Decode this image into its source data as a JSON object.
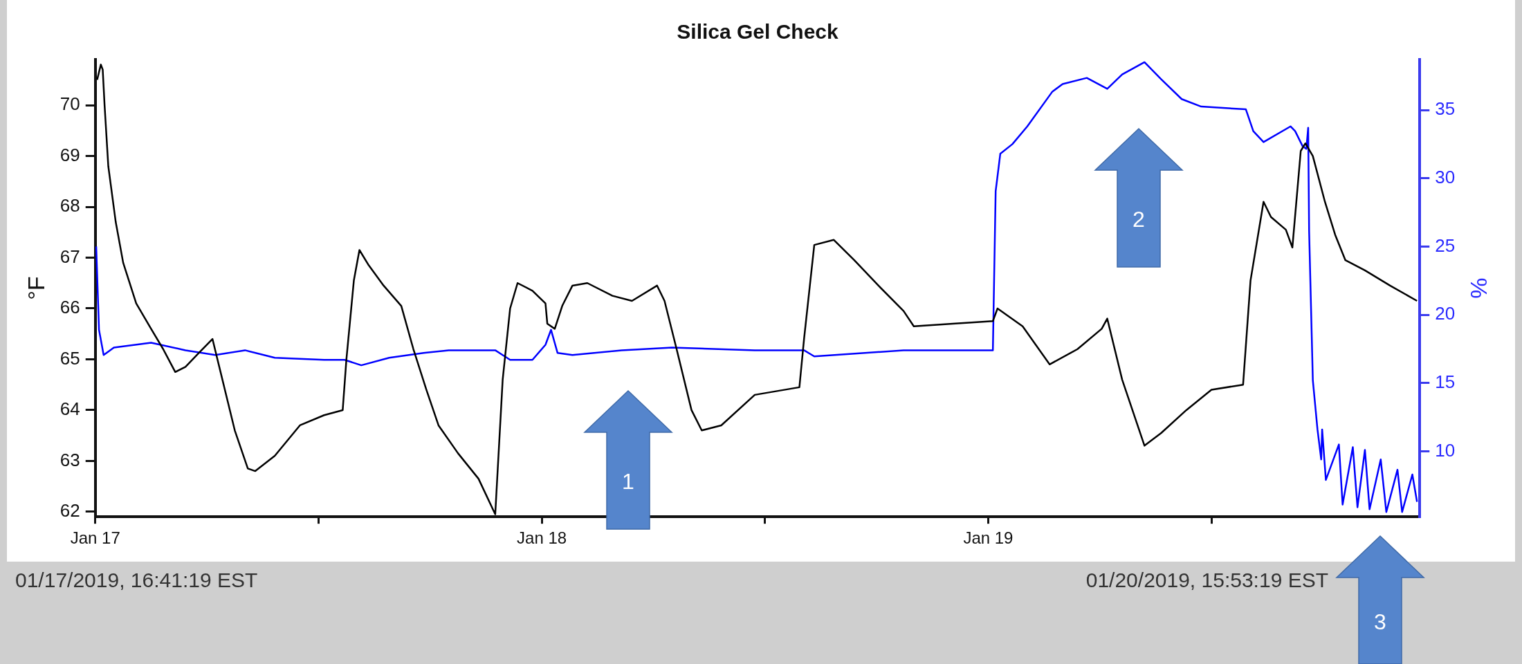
{
  "chart_data": {
    "type": "line",
    "title": "Silica Gel Check",
    "ylabel": "°F",
    "y2label": "%",
    "xlim": [
      "2019-01-17T16:41",
      "2019-01-20T15:53"
    ],
    "xticks": [
      {
        "value": "2019-01-17T16:41",
        "label": "Jan 17"
      },
      {
        "value": "2019-01-18T04:41",
        "label": null
      },
      {
        "value": "2019-01-18T16:41",
        "label": "Jan 18"
      },
      {
        "value": "2019-01-19T04:41",
        "label": null
      },
      {
        "value": "2019-01-19T16:41",
        "label": "Jan 19"
      },
      {
        "value": "2019-01-20T04:41",
        "label": null
      }
    ],
    "ylim": [
      61.9,
      70.9
    ],
    "yticks": [
      62,
      63,
      64,
      65,
      66,
      67,
      68,
      69,
      70
    ],
    "y2lim": [
      5.2,
      38.7
    ],
    "y2ticks": [
      10,
      15,
      20,
      25,
      30,
      35
    ],
    "grid": false,
    "legend": false,
    "marker": "none",
    "line_style": "solid",
    "annotations": [
      "01/17/2019, 16:41:19 EST",
      "01/20/2019, 15:53:19 EST",
      "1",
      "2",
      "3"
    ],
    "series": [
      {
        "color": "#000000",
        "x": [
          "2019-01-17T16:47",
          "2019-01-17T16:59",
          "2019-01-17T17:05",
          "2019-01-17T17:11",
          "2019-01-17T17:23",
          "2019-01-17T17:47",
          "2019-01-17T18:11",
          "2019-01-17T18:53",
          "2019-01-17T19:41",
          "2019-01-17T20:20",
          "2019-01-17T20:59",
          "2019-01-17T21:32",
          "2019-01-17T22:11",
          "2019-01-17T22:59",
          "2019-01-17T23:23",
          "2019-01-18T00:11",
          "2019-01-18T00:53",
          "2019-01-18T01:17",
          "2019-01-18T02:20",
          "2019-01-18T03:41",
          "2019-01-18T04:59",
          "2019-01-18T05:59",
          "2019-01-18T06:11",
          "2019-01-18T06:35",
          "2019-01-18T06:53",
          "2019-01-18T07:23",
          "2019-01-18T08:11",
          "2019-01-18T09:08",
          "2019-01-18T09:47",
          "2019-01-18T10:29",
          "2019-01-18T11:08",
          "2019-01-18T12:11",
          "2019-01-18T13:17",
          "2019-01-18T14:11",
          "2019-01-18T14:35",
          "2019-01-18T14:59",
          "2019-01-18T15:23",
          "2019-01-18T16:11",
          "2019-01-18T16:53",
          "2019-01-18T16:59",
          "2019-01-18T17:23",
          "2019-01-18T17:47",
          "2019-01-18T18:20",
          "2019-01-18T19:08",
          "2019-01-18T20:29",
          "2019-01-18T21:32",
          "2019-01-18T22:53",
          "2019-01-18T23:17",
          "2019-01-18T23:56",
          "2019-01-19T00:44",
          "2019-01-19T01:17",
          "2019-01-19T02:20",
          "2019-01-19T04:08",
          "2019-01-19T06:32",
          "2019-01-19T06:47",
          "2019-01-19T07:20",
          "2019-01-19T08:23",
          "2019-01-19T09:29",
          "2019-01-19T10:47",
          "2019-01-19T12:08",
          "2019-01-19T12:41",
          "2019-01-19T14:47",
          "2019-01-19T16:56",
          "2019-01-19T17:11",
          "2019-01-19T18:32",
          "2019-01-19T19:59",
          "2019-01-19T21:29",
          "2019-01-19T22:47",
          "2019-01-19T23:05",
          "2019-01-19T23:53",
          "2019-01-20T01:05",
          "2019-01-20T01:59",
          "2019-01-20T03:20",
          "2019-01-20T04:41",
          "2019-01-20T06:23",
          "2019-01-20T06:47",
          "2019-01-20T07:29",
          "2019-01-20T07:53",
          "2019-01-20T08:41",
          "2019-01-20T09:02",
          "2019-01-20T09:29",
          "2019-01-20T09:44",
          "2019-01-20T10:08",
          "2019-01-20T10:47",
          "2019-01-20T11:20",
          "2019-01-20T11:53",
          "2019-01-20T12:56",
          "2019-01-20T14:17",
          "2019-01-20T15:44"
        ],
        "values": [
          70.5,
          70.8,
          70.7,
          70.0,
          68.8,
          67.7,
          66.9,
          66.1,
          65.6,
          65.2,
          64.75,
          64.85,
          65.1,
          65.4,
          64.8,
          63.6,
          62.85,
          62.8,
          63.1,
          63.7,
          63.9,
          64.0,
          65.0,
          66.55,
          67.15,
          66.85,
          66.45,
          66.05,
          65.2,
          64.4,
          63.7,
          63.15,
          62.65,
          61.95,
          64.6,
          66.0,
          66.5,
          66.35,
          66.1,
          65.7,
          65.6,
          66.05,
          66.45,
          66.5,
          66.25,
          66.15,
          66.45,
          66.15,
          65.2,
          64.0,
          63.6,
          63.7,
          64.3,
          64.45,
          65.4,
          67.25,
          67.35,
          66.95,
          66.45,
          65.95,
          65.65,
          65.7,
          65.75,
          66.0,
          65.65,
          64.9,
          65.2,
          65.6,
          65.8,
          64.6,
          63.3,
          63.55,
          64.0,
          64.4,
          64.5,
          66.55,
          68.1,
          67.8,
          67.55,
          67.2,
          69.1,
          69.25,
          69.0,
          68.1,
          67.45,
          66.95,
          66.75,
          66.45,
          66.15
        ]
      },
      {
        "color": "#0000ff",
        "axis": "y2",
        "x": [
          "2019-01-17T16:44",
          "2019-01-17T16:53",
          "2019-01-17T17:08",
          "2019-01-17T17:41",
          "2019-01-17T19:41",
          "2019-01-17T21:32",
          "2019-01-17T23:08",
          "2019-01-18T00:44",
          "2019-01-18T02:20",
          "2019-01-18T04:59",
          "2019-01-18T06:05",
          "2019-01-18T06:59",
          "2019-01-18T08:29",
          "2019-01-18T10:20",
          "2019-01-18T11:41",
          "2019-01-18T14:11",
          "2019-01-18T14:59",
          "2019-01-18T16:11",
          "2019-01-18T16:53",
          "2019-01-18T17:11",
          "2019-01-18T17:32",
          "2019-01-18T18:20",
          "2019-01-18T20:59",
          "2019-01-18T23:41",
          "2019-01-19T04:08",
          "2019-01-19T06:47",
          "2019-01-19T07:20",
          "2019-01-19T12:08",
          "2019-01-19T16:56",
          "2019-01-19T17:05",
          "2019-01-19T17:20",
          "2019-01-19T17:59",
          "2019-01-19T18:47",
          "2019-01-19T20:08",
          "2019-01-19T20:41",
          "2019-01-19T21:59",
          "2019-01-19T23:05",
          "2019-01-19T23:53",
          "2019-01-20T01:05",
          "2019-01-20T01:59",
          "2019-01-20T03:05",
          "2019-01-20T04:08",
          "2019-01-20T06:32",
          "2019-01-20T06:56",
          "2019-01-20T07:29",
          "2019-01-20T08:56",
          "2019-01-20T09:11",
          "2019-01-20T09:35",
          "2019-01-20T09:47",
          "2019-01-20T09:53",
          "2019-01-20T09:56",
          "2019-01-20T10:08",
          "2019-01-20T10:23",
          "2019-01-20T10:35",
          "2019-01-20T10:38",
          "2019-01-20T10:50",
          "2019-01-20T11:32",
          "2019-01-20T11:44",
          "2019-01-20T12:17",
          "2019-01-20T12:32",
          "2019-01-20T12:56",
          "2019-01-20T13:11",
          "2019-01-20T13:47",
          "2019-01-20T14:05",
          "2019-01-20T14:41",
          "2019-01-20T14:56",
          "2019-01-20T15:29",
          "2019-01-20T15:44"
        ],
        "values": [
          25.0,
          18.9,
          17.05,
          17.6,
          17.95,
          17.4,
          17.05,
          17.4,
          16.85,
          16.7,
          16.7,
          16.3,
          16.85,
          17.2,
          17.4,
          17.4,
          16.7,
          16.7,
          17.8,
          18.9,
          17.2,
          17.05,
          17.4,
          17.6,
          17.4,
          17.4,
          16.95,
          17.4,
          17.4,
          29.05,
          31.8,
          32.5,
          33.8,
          36.35,
          36.9,
          37.35,
          36.55,
          37.6,
          38.5,
          37.25,
          35.8,
          35.25,
          35.05,
          33.45,
          32.65,
          33.8,
          33.45,
          32.35,
          32.15,
          33.7,
          26.15,
          15.2,
          11.6,
          9.4,
          11.6,
          7.9,
          10.5,
          6.1,
          10.3,
          5.9,
          10.1,
          5.75,
          9.4,
          5.55,
          8.65,
          5.55,
          8.3,
          6.3
        ]
      }
    ]
  }
}
